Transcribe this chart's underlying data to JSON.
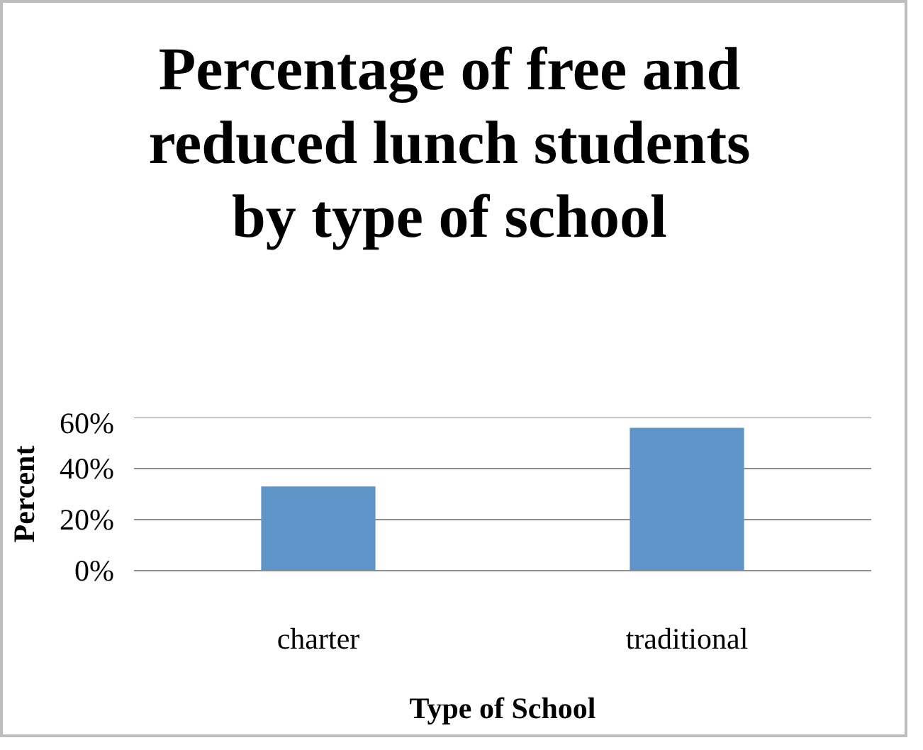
{
  "chart_data": {
    "type": "bar",
    "title": "Percentage of free and reduced lunch students by type of school",
    "xlabel": "Type of School",
    "ylabel": "Percent",
    "categories": [
      "charter",
      "traditional"
    ],
    "values": [
      33,
      56
    ],
    "color": "#5f94c9",
    "ylim": [
      0,
      60
    ],
    "yticks": [
      {
        "value": 0,
        "label": "0%"
      },
      {
        "value": 20,
        "label": "20%"
      },
      {
        "value": 40,
        "label": "40%"
      },
      {
        "value": 60,
        "label": "60%"
      }
    ],
    "grid": "y"
  }
}
